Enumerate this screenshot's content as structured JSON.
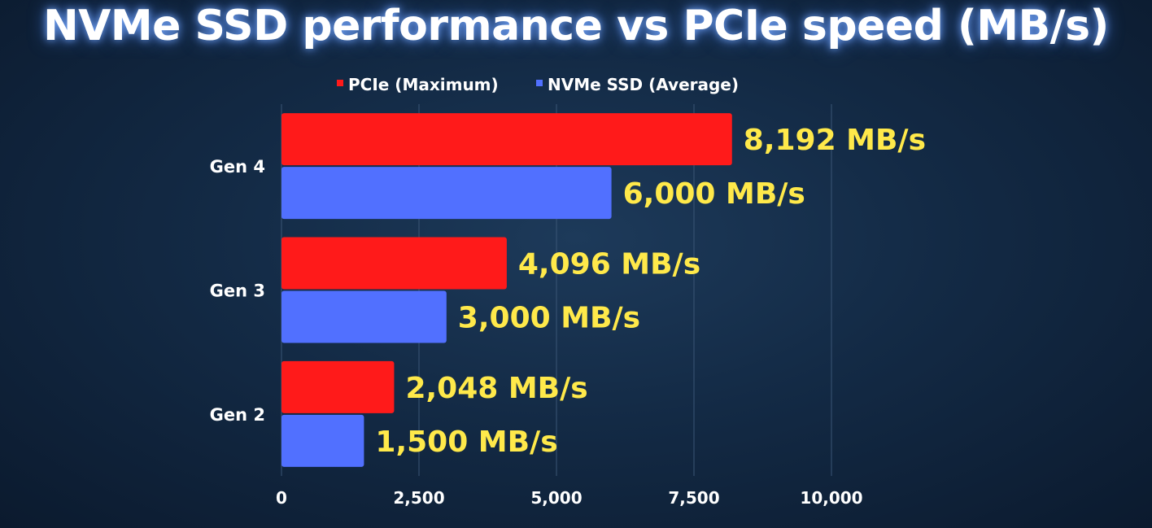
{
  "chart_data": {
    "type": "bar",
    "orientation": "horizontal",
    "title": "NVMe SSD performance vs PCIe speed (MB/s)",
    "categories": [
      "Gen 4",
      "Gen 3",
      "Gen 2"
    ],
    "series": [
      {
        "name": "PCIe (Maximum)",
        "color": "#ff1a1a",
        "values": [
          8192,
          4096,
          2048
        ],
        "labels": [
          "8,192 MB/s",
          "4,096 MB/s",
          "2,048 MB/s"
        ]
      },
      {
        "name": "NVMe SSD (Average)",
        "color": "#5170ff",
        "values": [
          6000,
          3000,
          1500
        ],
        "labels": [
          "6,000 MB/s",
          "3,000 MB/s",
          "1,500 MB/s"
        ]
      }
    ],
    "xlim": [
      0,
      10000
    ],
    "xticks": [
      0,
      2500,
      5000,
      7500,
      10000
    ],
    "xtick_labels": [
      "0",
      "2,500",
      "5,000",
      "7,500",
      "10,000"
    ],
    "grid": true,
    "legend_position": "top"
  }
}
